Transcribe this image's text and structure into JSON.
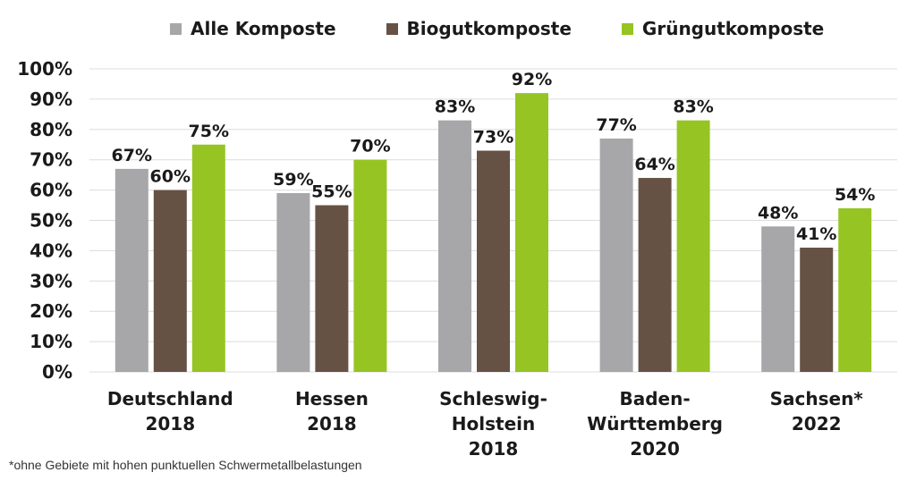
{
  "colors": {
    "Alle Komposte": "#a7a6a8",
    "Biogutkomposte": "#665244",
    "Grüngutkomposte": "#96c423",
    "grid": "#dcdcdc",
    "text": "#1a1a1a"
  },
  "chart_data": {
    "type": "bar",
    "categories": [
      [
        "Deutschland",
        "2018"
      ],
      [
        "Hessen",
        "2018"
      ],
      [
        "Schleswig-",
        "Holstein",
        "2018"
      ],
      [
        "Baden-",
        "Württemberg",
        "2020"
      ],
      [
        "Sachsen*",
        "2022"
      ]
    ],
    "series": [
      {
        "name": "Alle Komposte",
        "values": [
          67,
          59,
          83,
          77,
          48
        ]
      },
      {
        "name": "Biogutkomposte",
        "values": [
          60,
          55,
          73,
          64,
          41
        ]
      },
      {
        "name": "Grüngutkomposte",
        "values": [
          75,
          70,
          92,
          83,
          54
        ]
      }
    ],
    "value_suffix": "%",
    "yticks": [
      "0%",
      "10%",
      "20%",
      "30%",
      "40%",
      "50%",
      "60%",
      "70%",
      "80%",
      "90%",
      "100%"
    ],
    "ylim": [
      0,
      100
    ],
    "grid": true,
    "legend_position": "top"
  },
  "footnote": "*ohne Gebiete mit hohen punktuellen Schwermetallbelastungen"
}
